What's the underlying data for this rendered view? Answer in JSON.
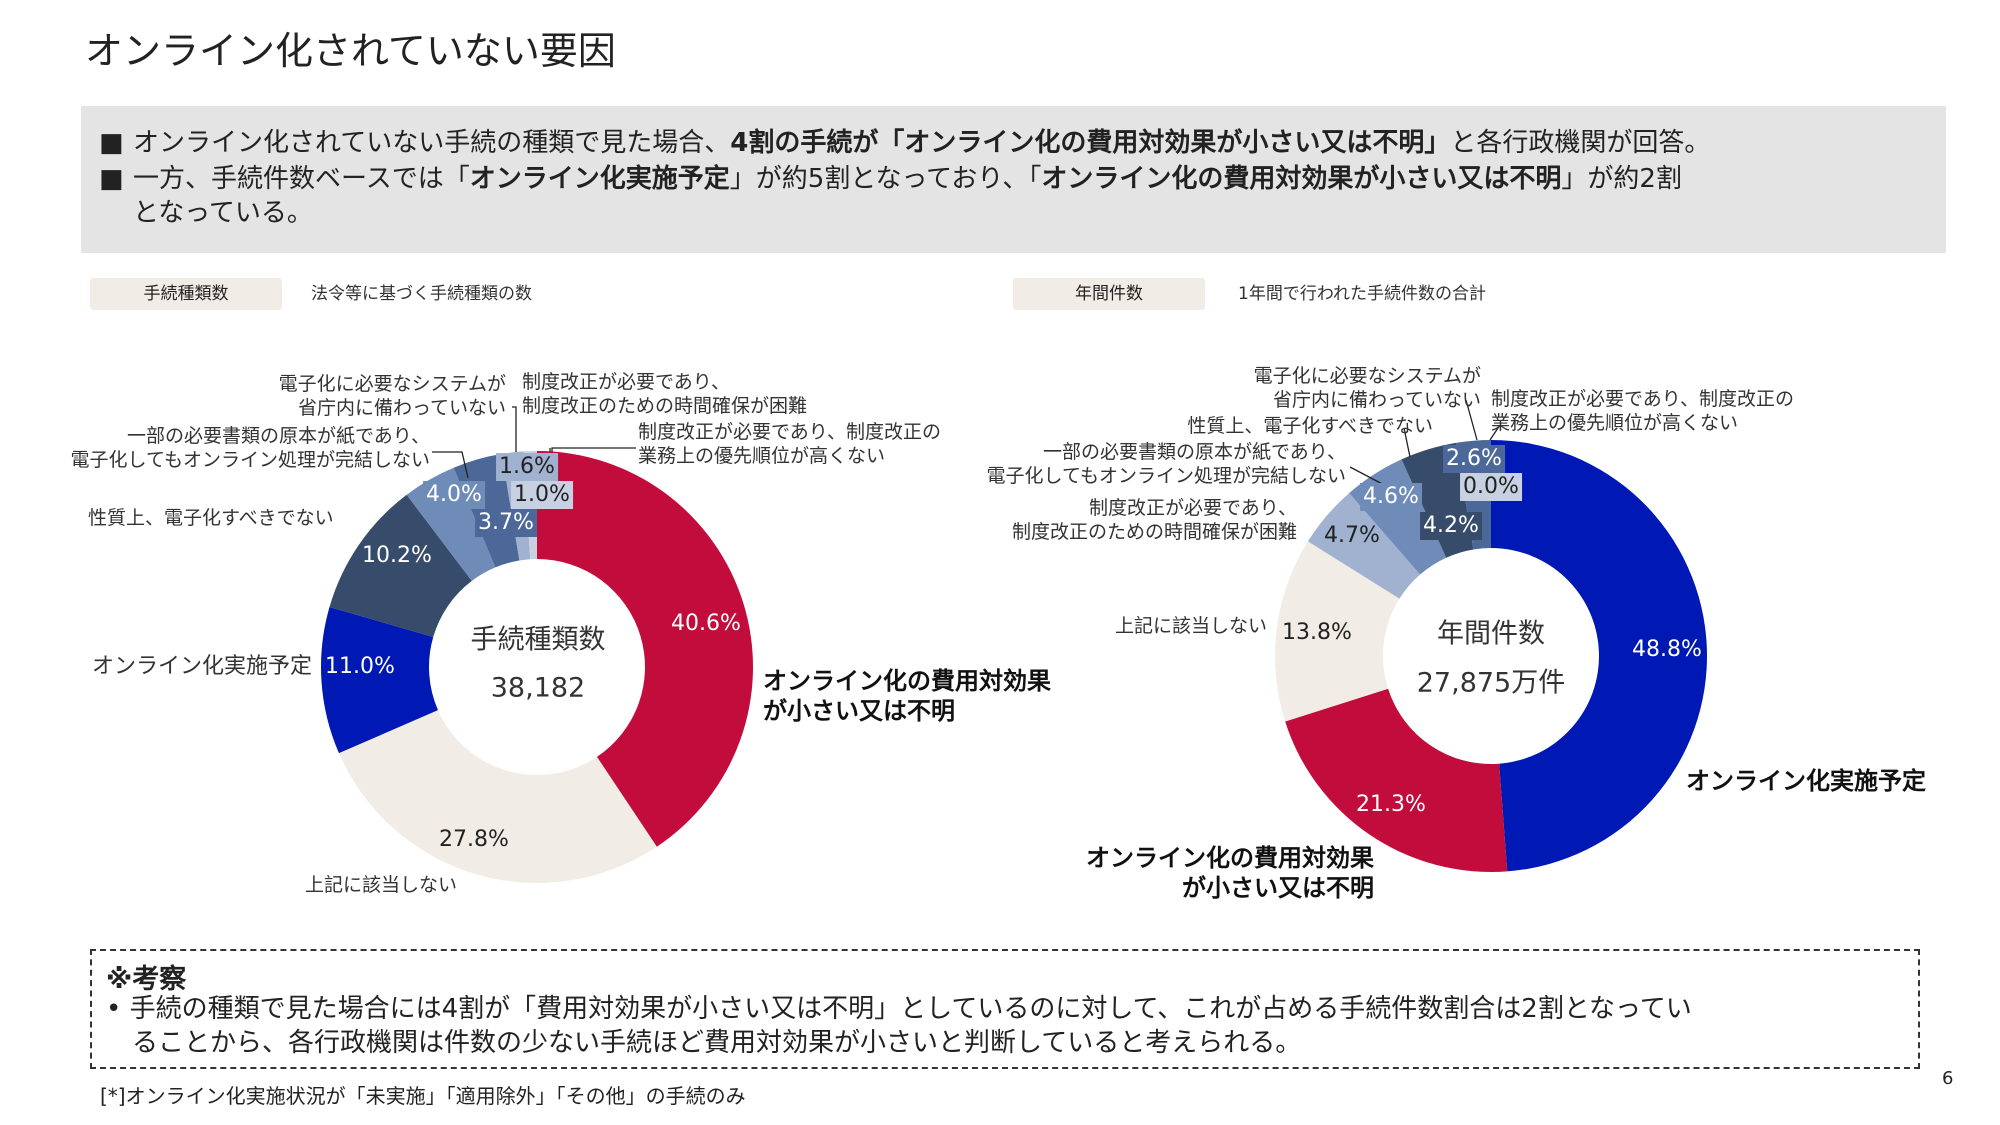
{
  "title": "オンライン化されていない要因",
  "summary": {
    "line1": {
      "a": "オンライン化されていない手続の種類で見た場合、",
      "b": "4割の手続が「オンライン化の費用対効果が小さい又は不明」",
      "c": "と各行政機関が回答。"
    },
    "line2": {
      "a": "一方、手続件数ベースでは「",
      "b": "オンライン化実施予定",
      "c": "」が約5割",
      "d": "となっており、「",
      "e": "オンライン化の費用対効果が小さい又は不明",
      "f": "」が約2割"
    },
    "line3": "となっている。",
    "bullet": "■"
  },
  "legend": {
    "left_tag": "手続種類数",
    "left_desc": "法令等に基づく手続種類の数",
    "right_tag": "年間件数",
    "right_desc": "1年間で行われた手続件数の合計"
  },
  "colors": {
    "cost": "#c20c3c",
    "none": "#f1ede6",
    "plan": "#0019b4",
    "nature": "#374b6b",
    "paper": "#6f8cb9",
    "system": "#4c6898",
    "time": "#a0b2d0",
    "priority": "#c7d1e2"
  },
  "chart_data": [
    {
      "type": "pie",
      "donut": true,
      "center_title": "手続種類数",
      "center_value": "38,182",
      "slices": [
        {
          "key": "cost",
          "label": "オンライン化の費用対効果\nが小さい又は不明",
          "value": 40.6,
          "text": "40.6%"
        },
        {
          "key": "none",
          "label": "上記に該当しない",
          "value": 27.8,
          "text": "27.8%"
        },
        {
          "key": "plan",
          "label": "オンライン化実施予定",
          "value": 11.0,
          "text": "11.0%"
        },
        {
          "key": "nature",
          "label": "性質上、電子化すべきでない",
          "value": 10.2,
          "text": "10.2%"
        },
        {
          "key": "paper",
          "label": "一部の必要書類の原本が紙であり、\n電子化してもオンライン処理が完結しない",
          "value": 4.0,
          "text": "4.0%"
        },
        {
          "key": "system",
          "label": "電子化に必要なシステムが\n省庁内に備わっていない",
          "value": 3.7,
          "text": "3.7%"
        },
        {
          "key": "time",
          "label": "制度改正が必要であり、\n制度改正のための時間確保が困難",
          "value": 1.6,
          "text": "1.6%"
        },
        {
          "key": "priority",
          "label": "制度改正が必要であり、制度改正の\n業務上の優先順位が高くない",
          "value": 1.0,
          "text": "1.0%"
        }
      ]
    },
    {
      "type": "pie",
      "donut": true,
      "center_title": "年間件数",
      "center_value": "27,875万件",
      "slices": [
        {
          "key": "plan",
          "label": "オンライン化実施予定",
          "value": 48.8,
          "text": "48.8%"
        },
        {
          "key": "cost",
          "label": "オンライン化の費用対効果\nが小さい又は不明",
          "value": 21.3,
          "text": "21.3%"
        },
        {
          "key": "none",
          "label": "上記に該当しない",
          "value": 13.8,
          "text": "13.8%"
        },
        {
          "key": "time",
          "label": "制度改正が必要であり、\n制度改正のための時間確保が困難",
          "value": 4.7,
          "text": "4.7%"
        },
        {
          "key": "paper",
          "label": "一部の必要書類の原本が紙であり、\n電子化してもオンライン処理が完結しない",
          "value": 4.6,
          "text": "4.6%"
        },
        {
          "key": "nature",
          "label": "性質上、電子化すべきでない",
          "value": 4.2,
          "text": "4.2%"
        },
        {
          "key": "system",
          "label": "電子化に必要なシステムが\n省庁内に備わっていない",
          "value": 2.6,
          "text": "2.6%"
        },
        {
          "key": "priority",
          "label": "制度改正が必要であり、制度改正の\n業務上の優先順位が高くない",
          "value": 0.0,
          "text": "0.0%"
        }
      ]
    }
  ],
  "note": {
    "heading": "※考察",
    "bullet": "•",
    "line1": "手続の種類で見た場合には4割が「費用対効果が小さい又は不明」としているのに対して、これが占める手続件数割合は2割となってい",
    "line2": "ることから、各行政機関は件数の少ない手続ほど費用対効果が小さいと判断していると考えられる。"
  },
  "footnote": "[*]オンライン化実施状況が「未実施」「適用除外」「その他」の手続のみ",
  "page_number": "6"
}
